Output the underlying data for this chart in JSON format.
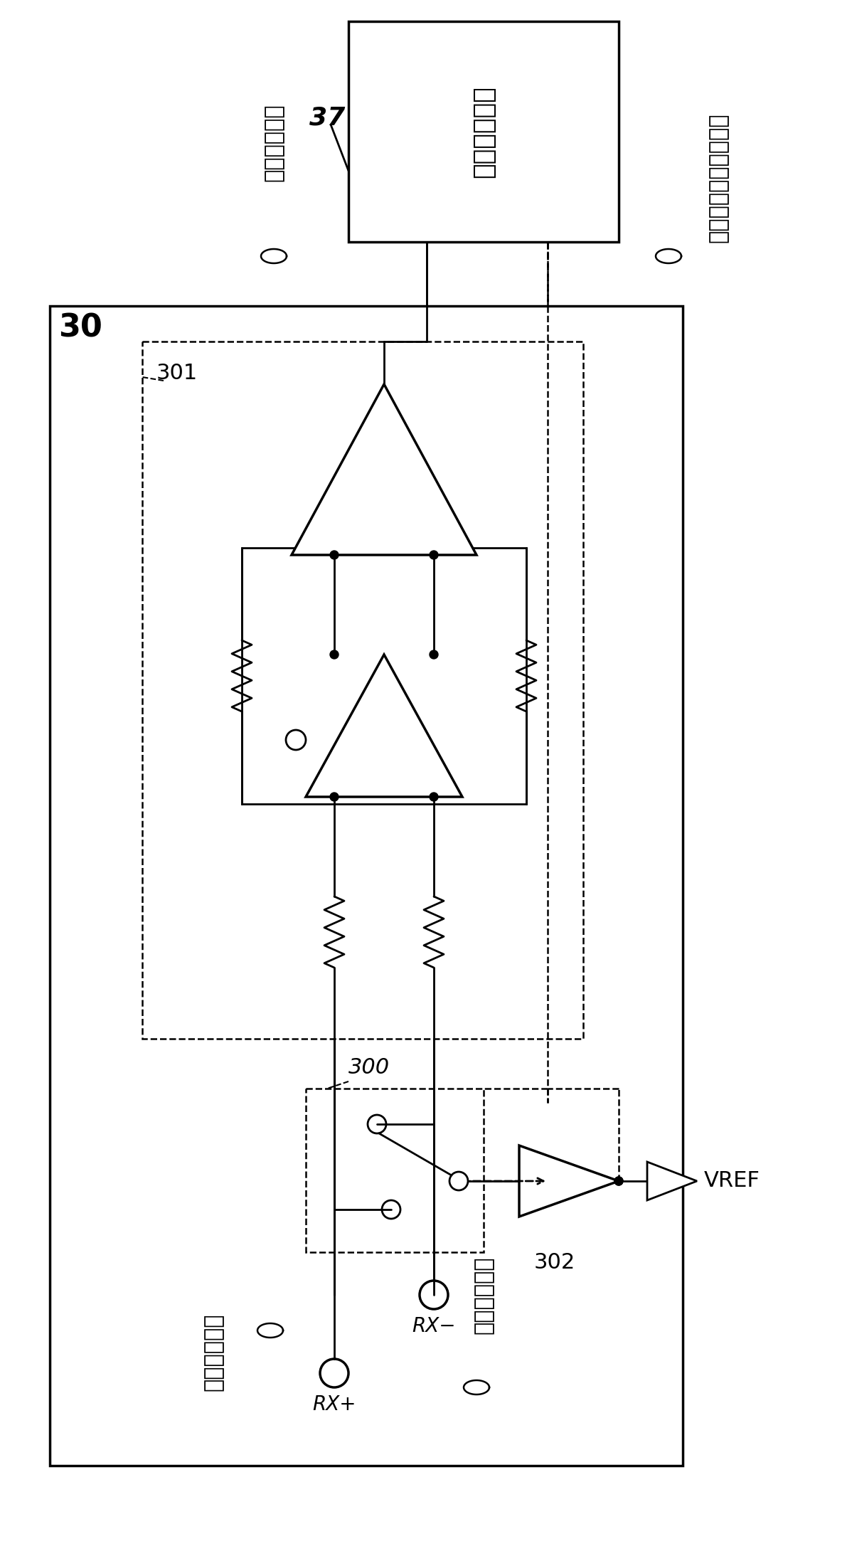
{
  "bg_color": "#ffffff",
  "text_color": "#000000",
  "label_37": "37",
  "label_30": "30",
  "label_301": "301",
  "label_300": "300",
  "label_302": "302",
  "label_rx_plus": "RX+",
  "label_rx_minus": "RX−",
  "label_vref": "VREF",
  "text_module": "断线检测模块",
  "text_diff_synth": "差分合成信号",
  "text_pos_recv": "正的接收信号",
  "text_neg_recv": "负的接收信号",
  "text_switch_ctrl": "差分开关模块控制信号"
}
